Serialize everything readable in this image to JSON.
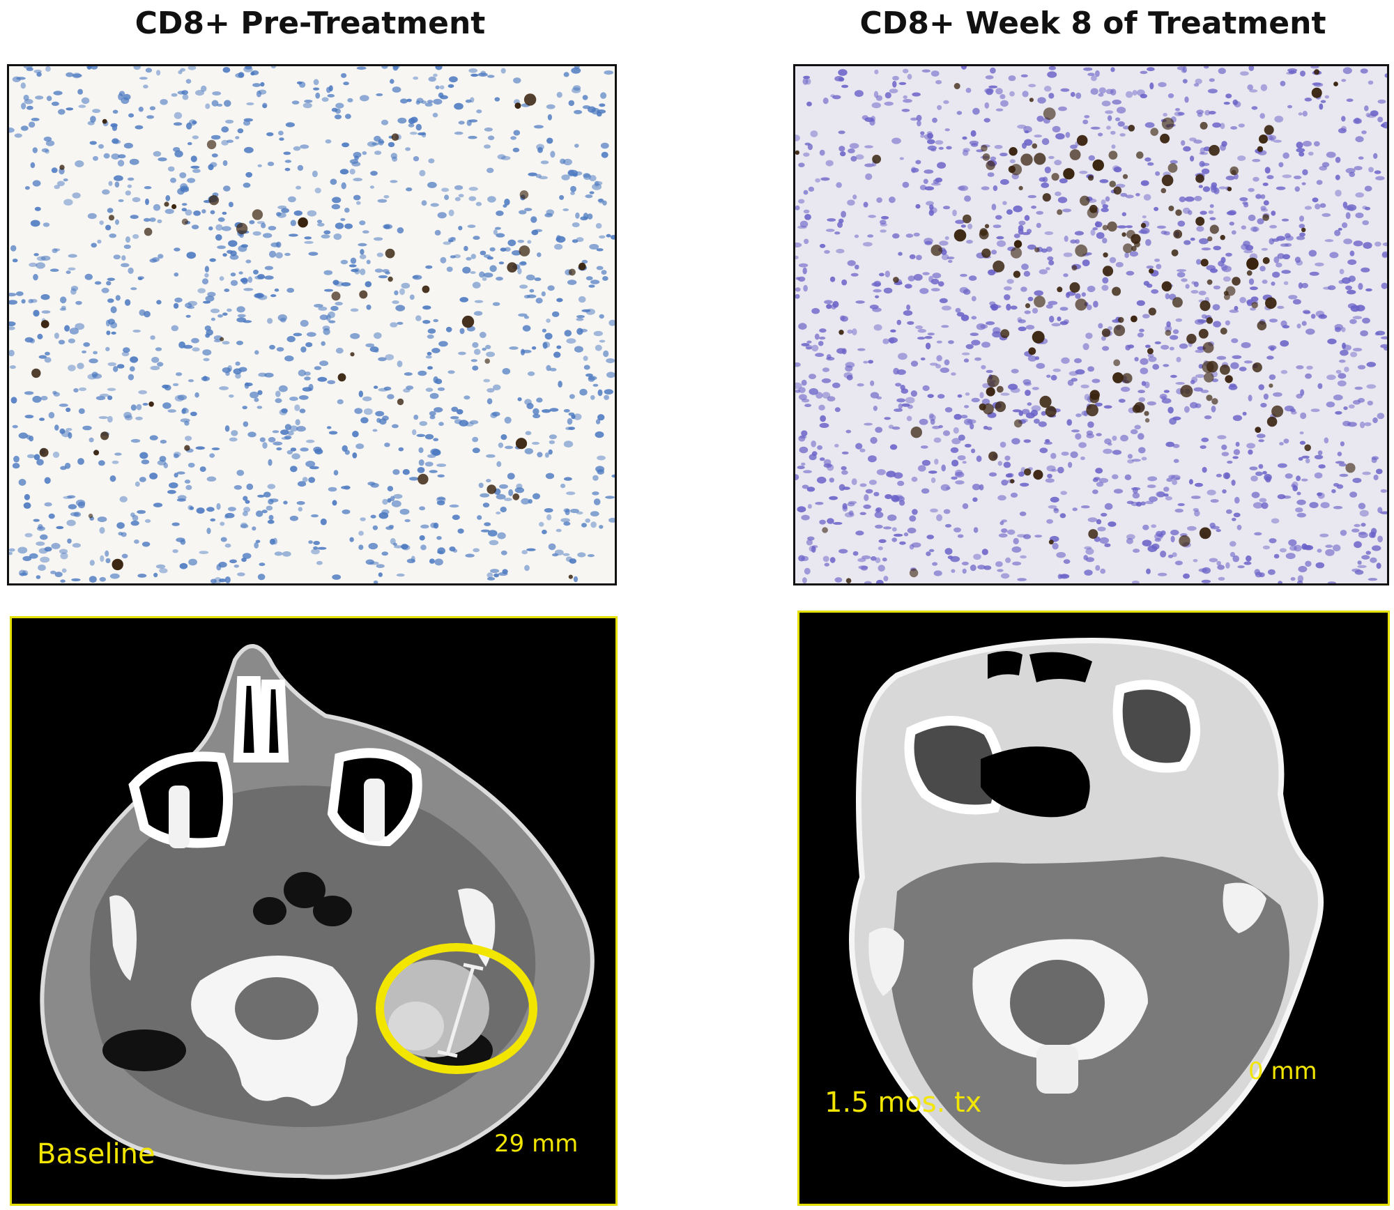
{
  "titles": {
    "left": "CD8+ Pre-Treatment",
    "right": "CD8+ Week 8 of Treatment"
  },
  "ct_left": {
    "timepoint": "Baseline",
    "measurement": "29 mm"
  },
  "ct_right": {
    "timepoint": "1.5 mos. tx",
    "measurement": "0 mm"
  },
  "colors": {
    "annotation_yellow": "#f2e600",
    "nuclei_blue_pre": "#4a78c0",
    "nuclei_blue_post": "#6a62c8",
    "cd8_brown": "#3a2410"
  }
}
